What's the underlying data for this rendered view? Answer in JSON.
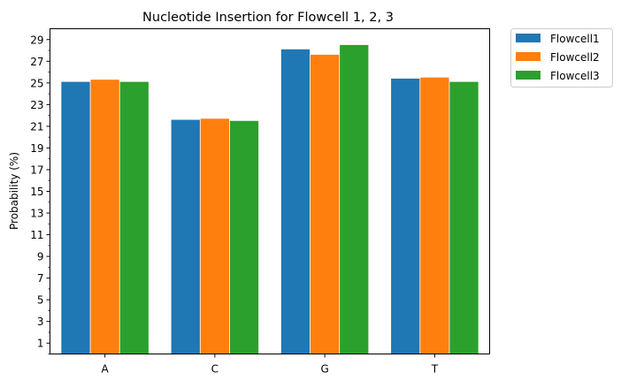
{
  "chart_data": {
    "type": "bar",
    "title": "Nucleotide Insertion for Flowcell 1, 2, 3",
    "xlabel": "",
    "ylabel": "Probability (%)",
    "categories": [
      "A",
      "C",
      "G",
      "T"
    ],
    "series": [
      {
        "name": "Flowcell1",
        "color": "#1f77b4",
        "values": [
          25.1,
          21.6,
          28.1,
          25.4
        ]
      },
      {
        "name": "Flowcell2",
        "color": "#ff7f0e",
        "values": [
          25.3,
          21.7,
          27.6,
          25.5
        ]
      },
      {
        "name": "Flowcell3",
        "color": "#2ca02c",
        "values": [
          25.1,
          21.5,
          28.5,
          25.1
        ]
      }
    ],
    "ylim": [
      0,
      30
    ],
    "yticks": [
      "1",
      "3",
      "5",
      "7",
      "9",
      "11",
      "13",
      "15",
      "17",
      "19",
      "21",
      "23",
      "25",
      "27",
      "29"
    ],
    "grid": false,
    "legend_position": "outside-top-right"
  }
}
